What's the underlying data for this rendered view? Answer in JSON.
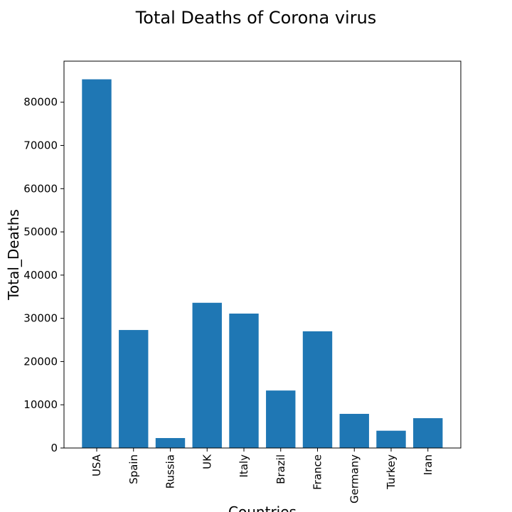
{
  "chart_data": {
    "type": "bar",
    "title": "Total Deaths of Corona virus",
    "xlabel": "Countries",
    "ylabel": "Total_Deaths",
    "categories": [
      "USA",
      "Spain",
      "Russia",
      "UK",
      "Italy",
      "Brazil",
      "France",
      "Germany",
      "Turkey",
      "Iran"
    ],
    "values": [
      85300,
      27300,
      2300,
      33600,
      31100,
      13300,
      27000,
      7900,
      4000,
      6900
    ],
    "ylim": [
      0,
      89500
    ],
    "yticks": [
      0,
      10000,
      20000,
      30000,
      40000,
      50000,
      60000,
      70000,
      80000
    ],
    "ytick_labels": [
      "0",
      "10000",
      "20000",
      "30000",
      "40000",
      "50000",
      "60000",
      "70000",
      "80000"
    ],
    "bar_color": "#1f77b4",
    "grid": false,
    "legend": "none"
  }
}
